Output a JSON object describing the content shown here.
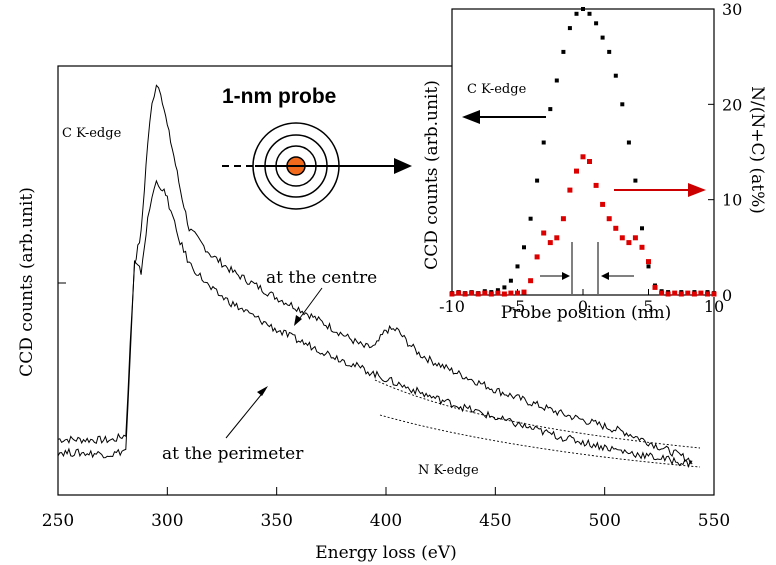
{
  "chart_data": [
    {
      "type": "line",
      "xlabel": "Energy loss (eV)",
      "ylabel": "CCD counts (arb.unit)",
      "xlim": [
        250,
        550
      ],
      "ylim": [
        0,
        10
      ],
      "x_ticks": [
        250,
        300,
        350,
        400,
        450,
        500,
        550
      ],
      "annotations": {
        "c_edge": "C K-edge",
        "n_edge": "N K-edge",
        "centre": "at the centre",
        "perimeter": "at the perimeter",
        "probe": "1-nm probe"
      },
      "series": [
        {
          "name": "at the centre",
          "x": [
            250,
            275,
            281,
            283,
            285,
            288,
            291,
            293,
            295,
            297,
            300,
            303,
            306,
            310,
            320,
            330,
            340,
            350,
            360,
            370,
            380,
            390,
            395,
            400,
            405,
            410,
            415,
            420,
            430,
            450,
            480,
            510,
            540
          ],
          "y": [
            1.3,
            1.28,
            1.4,
            3.5,
            5.4,
            6.1,
            8.2,
            9.1,
            9.6,
            9.4,
            8.6,
            7.9,
            7.1,
            6.2,
            5.6,
            5.2,
            4.9,
            4.6,
            4.35,
            4.05,
            3.75,
            3.45,
            3.45,
            3.85,
            3.85,
            3.55,
            3.3,
            3.15,
            2.9,
            2.45,
            1.9,
            1.45,
            0.8
          ]
        },
        {
          "name": "at the perimeter",
          "x": [
            250,
            275,
            281,
            283,
            285,
            288,
            291,
            293,
            295,
            297,
            300,
            305,
            310,
            320,
            330,
            340,
            350,
            360,
            380,
            400,
            420,
            450,
            480,
            510,
            540
          ],
          "y": [
            1.0,
            0.95,
            1.05,
            3.2,
            5.4,
            5.2,
            6.4,
            6.95,
            7.3,
            7.2,
            6.9,
            6.0,
            5.4,
            4.8,
            4.45,
            4.15,
            3.85,
            3.6,
            3.15,
            2.7,
            2.3,
            1.8,
            1.35,
            1.0,
            0.72
          ]
        }
      ]
    },
    {
      "type": "scatter",
      "xlabel": "Probe position (nm)",
      "ylabel_left": "CCD counts (arb.unit)",
      "ylabel_right": "N/(N+C) (at%)",
      "xlim": [
        -10,
        10
      ],
      "ylim_right": [
        0,
        30
      ],
      "x_ticks": [
        -10,
        -5,
        0,
        5,
        10
      ],
      "y_ticks_right": [
        0,
        10,
        20,
        30
      ],
      "annotations": {
        "c_edge": "C K-edge"
      },
      "series": [
        {
          "name": "C K-edge",
          "color": "#000000",
          "x": [
            -10,
            -9.5,
            -9,
            -8.5,
            -8,
            -7.5,
            -7,
            -6.5,
            -6,
            -5.5,
            -5,
            -4.5,
            -4,
            -3.5,
            -3,
            -2.5,
            -2,
            -1.5,
            -1,
            -0.5,
            0,
            0.5,
            1,
            1.5,
            2,
            2.5,
            3,
            3.5,
            4,
            4.5,
            5,
            5.5,
            6,
            6.5,
            7,
            7.5,
            8,
            8.5,
            9,
            9.5,
            10
          ],
          "y": [
            0.2,
            0.3,
            0.2,
            0.3,
            0.2,
            0.4,
            0.3,
            0.5,
            0.8,
            1.5,
            3.0,
            5.0,
            8.0,
            12.0,
            16.0,
            19.5,
            22.5,
            25.5,
            28.0,
            29.5,
            30.0,
            29.5,
            28.5,
            27.0,
            25.5,
            23.0,
            20.0,
            16.0,
            12.0,
            7.0,
            3.0,
            1.0,
            0.4,
            0.3,
            0.2,
            0.3,
            0.2,
            0.3,
            0.2,
            0.3,
            0.2
          ]
        },
        {
          "name": "N/(N+C)",
          "color": "#dd0000",
          "x": [
            -10,
            -9.5,
            -9,
            -8.5,
            -8,
            -7.5,
            -7,
            -6.5,
            -6,
            -5.5,
            -5,
            -4.5,
            -4,
            -3.5,
            -3,
            -2.5,
            -2,
            -1.5,
            -1,
            -0.5,
            0,
            0.5,
            1,
            1.5,
            2,
            2.5,
            3,
            3.5,
            4,
            4.5,
            5,
            5.5,
            6,
            6.5,
            7,
            7.5,
            8,
            8.5,
            9,
            9.5,
            10
          ],
          "y": [
            0.1,
            0.2,
            0.1,
            0.2,
            0.1,
            0.2,
            0.1,
            0.2,
            0.1,
            0.2,
            0.2,
            0.3,
            1.5,
            4.0,
            6.5,
            5.5,
            6.0,
            8.0,
            11.0,
            13.0,
            14.5,
            14.0,
            11.5,
            9.5,
            8.0,
            7.0,
            6.0,
            5.5,
            6.0,
            5.0,
            3.5,
            0.8,
            0.2,
            0.1,
            0.2,
            0.1,
            0.2,
            0.1,
            0.2,
            0.1,
            0.1
          ]
        }
      ]
    }
  ]
}
